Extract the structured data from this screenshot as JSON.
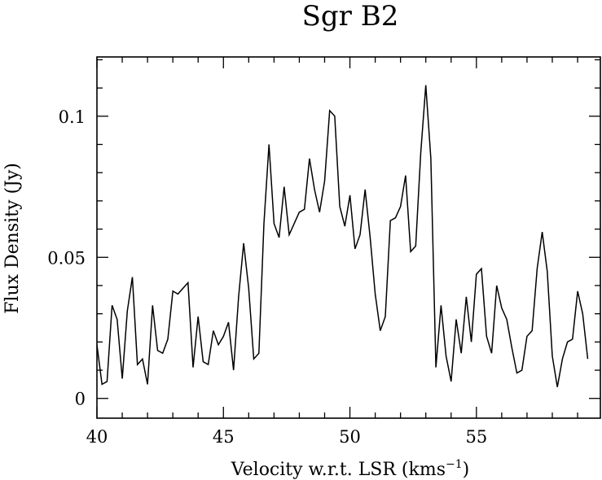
{
  "chart_data": {
    "type": "line",
    "title": "Sgr B2",
    "xlabel": "Velocity w.r.t. LSR (kms",
    "xlabel_sup": "−1",
    "xlabel_end": ")",
    "ylabel": "Flux Density (Jy)",
    "xlim": [
      40,
      59.9
    ],
    "ylim": [
      -0.007,
      0.121
    ],
    "grid": false,
    "xticks": [
      {
        "value": 40,
        "label": "40"
      },
      {
        "value": 45,
        "label": "45"
      },
      {
        "value": 50,
        "label": "50"
      },
      {
        "value": 55,
        "label": "55"
      }
    ],
    "yticks": [
      {
        "value": 0,
        "label": "0"
      },
      {
        "value": 0.05,
        "label": "0.05"
      },
      {
        "value": 0.1,
        "label": "0.1"
      }
    ],
    "x_minor_step": 1,
    "y_minor_step": 0.01,
    "series": [
      {
        "x": [
          40.0,
          40.2,
          40.4,
          40.6,
          40.8,
          41.0,
          41.2,
          41.4,
          41.6,
          41.8,
          42.0,
          42.2,
          42.4,
          42.6,
          42.8,
          43.0,
          43.2,
          43.4,
          43.6,
          43.8,
          44.0,
          44.2,
          44.4,
          44.6,
          44.8,
          45.0,
          45.2,
          45.4,
          45.6,
          45.8,
          46.0,
          46.2,
          46.4,
          46.6,
          46.8,
          47.0,
          47.2,
          47.4,
          47.6,
          47.8,
          48.0,
          48.2,
          48.4,
          48.6,
          48.8,
          49.0,
          49.2,
          49.4,
          49.6,
          49.8,
          50.0,
          50.2,
          50.4,
          50.6,
          50.8,
          51.0,
          51.2,
          51.4,
          51.6,
          51.8,
          52.0,
          52.2,
          52.4,
          52.6,
          52.8,
          53.0,
          53.2,
          53.4,
          53.6,
          53.8,
          54.0,
          54.2,
          54.4,
          54.6,
          54.8,
          55.0,
          55.2,
          55.4,
          55.6,
          55.8,
          56.0,
          56.2,
          56.4,
          56.6,
          56.8,
          57.0,
          57.2,
          57.4,
          57.6,
          57.8,
          58.0,
          58.2,
          58.4,
          58.6,
          58.8,
          59.0,
          59.2,
          59.4
        ],
        "y": [
          0.019,
          0.005,
          0.006,
          0.033,
          0.028,
          0.007,
          0.031,
          0.043,
          0.012,
          0.014,
          0.005,
          0.033,
          0.017,
          0.016,
          0.021,
          0.038,
          0.037,
          0.039,
          0.041,
          0.011,
          0.029,
          0.013,
          0.012,
          0.024,
          0.019,
          0.022,
          0.027,
          0.01,
          0.036,
          0.055,
          0.039,
          0.014,
          0.016,
          0.062,
          0.09,
          0.062,
          0.057,
          0.075,
          0.058,
          0.062,
          0.066,
          0.067,
          0.085,
          0.074,
          0.066,
          0.077,
          0.102,
          0.1,
          0.068,
          0.061,
          0.072,
          0.053,
          0.058,
          0.074,
          0.057,
          0.037,
          0.024,
          0.029,
          0.063,
          0.064,
          0.068,
          0.079,
          0.052,
          0.054,
          0.087,
          0.111,
          0.085,
          0.011,
          0.033,
          0.015,
          0.006,
          0.028,
          0.016,
          0.036,
          0.02,
          0.044,
          0.046,
          0.022,
          0.016,
          0.04,
          0.032,
          0.028,
          0.018,
          0.009,
          0.01,
          0.022,
          0.024,
          0.046,
          0.059,
          0.045,
          0.015,
          0.004,
          0.014,
          0.02,
          0.021,
          0.038,
          0.03,
          0.014
        ]
      }
    ]
  }
}
